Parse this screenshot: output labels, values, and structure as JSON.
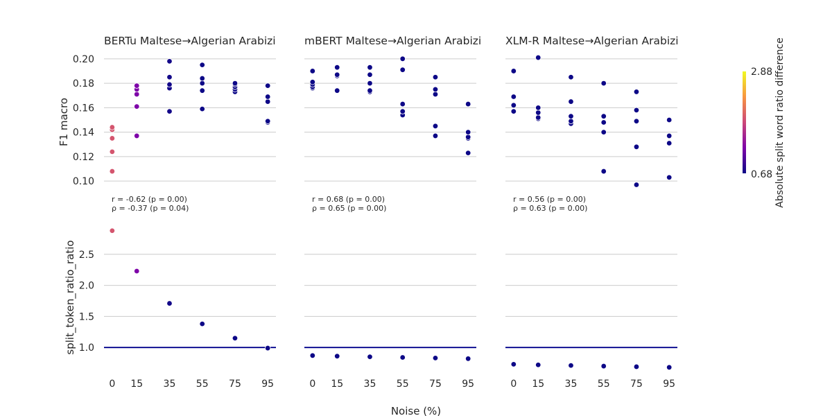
{
  "figure": {
    "xlabel": "Noise (%)",
    "colorbar": {
      "label": "Absolute split word ratio difference",
      "min": 0.68,
      "max": 2.88,
      "min_label": "0.68",
      "max_label": "2.88",
      "colormap": "plasma"
    }
  },
  "chart_data": {
    "type": "scatter",
    "x_ticks": [
      0,
      15,
      35,
      55,
      75,
      95
    ],
    "x_tick_labels": [
      "0",
      "15",
      "35",
      "55",
      "75",
      "95"
    ],
    "top_row": {
      "ylabel": "F1 macro",
      "ylim": [
        0.095,
        0.205
      ],
      "y_ticks": [
        0.1,
        0.12,
        0.14,
        0.16,
        0.18,
        0.2
      ],
      "y_tick_labels": [
        "0.10",
        "0.12",
        "0.14",
        "0.16",
        "0.18",
        "0.20"
      ]
    },
    "bottom_row": {
      "ylabel": "split_token_ratio_ratio",
      "ylim": [
        0.6,
        3.0
      ],
      "y_ticks": [
        1.0,
        1.5,
        2.0,
        2.5
      ],
      "y_tick_labels": [
        "1.0",
        "1.5",
        "2.0",
        "2.5"
      ],
      "reference_line": 1.0
    },
    "panels": [
      {
        "title": "BERTu Maltese→Algerian Arabizi",
        "stat_r": "r = -0.62 (p = 0.00)",
        "stat_rho": "ρ = -0.37 (p = 0.04)",
        "f1": [
          {
            "noise": 0,
            "values": [
              0.108,
              0.124,
              0.135,
              0.142,
              0.144
            ]
          },
          {
            "noise": 15,
            "values": [
              0.137,
              0.161,
              0.171,
              0.175,
              0.178
            ]
          },
          {
            "noise": 35,
            "values": [
              0.157,
              0.176,
              0.179,
              0.185,
              0.198
            ]
          },
          {
            "noise": 55,
            "values": [
              0.159,
              0.174,
              0.18,
              0.184,
              0.195
            ]
          },
          {
            "noise": 75,
            "values": [
              0.173,
              0.175,
              0.177,
              0.179,
              0.18
            ]
          },
          {
            "noise": 95,
            "values": [
              0.148,
              0.149,
              0.165,
              0.169,
              0.178
            ]
          }
        ],
        "ratio": [
          {
            "noise": 0,
            "value": 2.88
          },
          {
            "noise": 15,
            "value": 2.23
          },
          {
            "noise": 35,
            "value": 1.71
          },
          {
            "noise": 55,
            "value": 1.38
          },
          {
            "noise": 75,
            "value": 1.15
          },
          {
            "noise": 95,
            "value": 0.99
          }
        ]
      },
      {
        "title": "mBERT Maltese→Algerian Arabizi",
        "stat_r": "r = 0.68 (p = 0.00)",
        "stat_rho": "ρ = 0.65 (p = 0.00)",
        "f1": [
          {
            "noise": 0,
            "values": [
              0.176,
              0.177,
              0.179,
              0.181,
              0.19
            ]
          },
          {
            "noise": 15,
            "values": [
              0.174,
              0.174,
              0.186,
              0.187,
              0.193
            ]
          },
          {
            "noise": 35,
            "values": [
              0.173,
              0.174,
              0.18,
              0.187,
              0.193
            ]
          },
          {
            "noise": 55,
            "values": [
              0.154,
              0.157,
              0.163,
              0.191,
              0.2
            ]
          },
          {
            "noise": 75,
            "values": [
              0.137,
              0.145,
              0.171,
              0.175,
              0.185
            ]
          },
          {
            "noise": 95,
            "values": [
              0.123,
              0.135,
              0.136,
              0.14,
              0.163
            ]
          }
        ],
        "ratio": [
          {
            "noise": 0,
            "value": 0.87
          },
          {
            "noise": 15,
            "value": 0.86
          },
          {
            "noise": 35,
            "value": 0.85
          },
          {
            "noise": 55,
            "value": 0.84
          },
          {
            "noise": 75,
            "value": 0.83
          },
          {
            "noise": 95,
            "value": 0.82
          }
        ]
      },
      {
        "title": "XLM-R Maltese→Algerian Arabizi",
        "stat_r": "r = 0.56 (p = 0.00)",
        "stat_rho": "ρ = 0.63 (p = 0.00)",
        "f1": [
          {
            "noise": 0,
            "values": [
              0.157,
              0.162,
              0.169,
              0.19
            ]
          },
          {
            "noise": 15,
            "values": [
              0.151,
              0.152,
              0.156,
              0.16,
              0.201
            ]
          },
          {
            "noise": 35,
            "values": [
              0.147,
              0.149,
              0.153,
              0.165,
              0.185
            ]
          },
          {
            "noise": 55,
            "values": [
              0.108,
              0.14,
              0.148,
              0.153,
              0.18
            ]
          },
          {
            "noise": 75,
            "values": [
              0.097,
              0.128,
              0.149,
              0.158,
              0.173
            ]
          },
          {
            "noise": 95,
            "values": [
              0.103,
              0.131,
              0.137,
              0.15
            ]
          }
        ],
        "ratio": [
          {
            "noise": 0,
            "value": 0.73
          },
          {
            "noise": 15,
            "value": 0.72
          },
          {
            "noise": 35,
            "value": 0.71
          },
          {
            "noise": 55,
            "value": 0.7
          },
          {
            "noise": 75,
            "value": 0.69
          },
          {
            "noise": 95,
            "value": 0.68
          }
        ]
      }
    ]
  }
}
